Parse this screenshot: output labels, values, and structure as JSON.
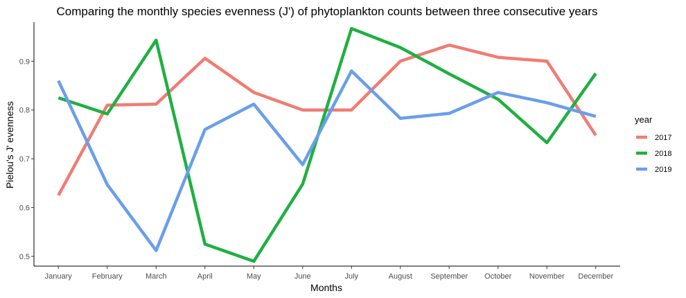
{
  "chart_data": {
    "type": "line",
    "title": "Comparing the monthly species evenness (J') of phytoplankton counts between three consecutive years",
    "xlabel": "Months",
    "ylabel": "Pielou's J' evenness",
    "categories": [
      "January",
      "February",
      "March",
      "April",
      "May",
      "June",
      "July",
      "August",
      "September",
      "October",
      "November",
      "December"
    ],
    "yticks": [
      0.5,
      0.6,
      0.7,
      0.8,
      0.9
    ],
    "ylim": [
      0.48,
      0.98
    ],
    "grid": false,
    "legend": {
      "title": "year",
      "position": "right"
    },
    "series": [
      {
        "name": "2017",
        "color": "#f07c73",
        "values": [
          0.625,
          0.81,
          0.812,
          0.906,
          0.836,
          0.8,
          0.8,
          0.9,
          0.933,
          0.908,
          0.9,
          0.748
        ]
      },
      {
        "name": "2018",
        "color": "#1fb040",
        "values": [
          0.825,
          0.792,
          0.943,
          0.525,
          0.49,
          0.648,
          0.967,
          0.928,
          0.874,
          0.822,
          0.733,
          0.875
        ]
      },
      {
        "name": "2019",
        "color": "#6a9eec",
        "values": [
          0.86,
          0.647,
          0.512,
          0.76,
          0.812,
          0.688,
          0.88,
          0.783,
          0.793,
          0.836,
          0.815,
          0.787
        ]
      }
    ]
  }
}
